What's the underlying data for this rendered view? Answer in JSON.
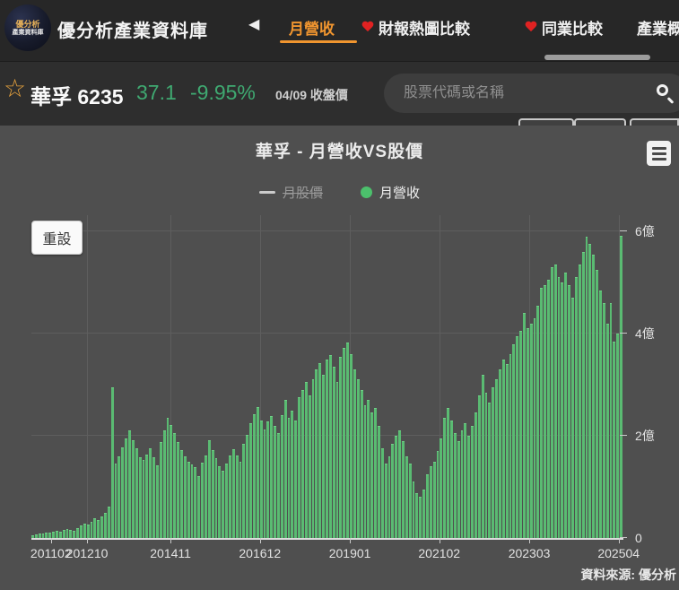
{
  "header": {
    "logo_line1": "優分析",
    "logo_line2": "產業資料庫",
    "brand": "優分析產業資料庫",
    "back_icon": "◀",
    "nav": [
      {
        "label": "月營收",
        "active": true,
        "heart": false
      },
      {
        "label": "財報熱圖比較",
        "active": false,
        "heart": true
      },
      {
        "label": "同業比較",
        "active": false,
        "heart": true
      },
      {
        "label": "產業概",
        "active": false,
        "heart": false
      }
    ]
  },
  "stockbar": {
    "star_icon": "☆",
    "stock_name": "華孚 6235",
    "price": "37.1",
    "change_pct": "-9.95%",
    "price_note": "04/09 收盤價",
    "search_placeholder": "股票代碼或名稱"
  },
  "chart": {
    "title": "華孚 - 月營收VS股價",
    "reset_label": "重設",
    "credits": "資料來源: 優分析",
    "legend": [
      {
        "label": "月股價",
        "type": "line",
        "disabled": true
      },
      {
        "label": "月營收",
        "type": "bar",
        "disabled": false,
        "color": "#5abb72"
      }
    ]
  },
  "colors": {
    "accent_orange": "#f0952f",
    "price_green": "#3fa971",
    "bar_green": "#5abb72",
    "topbar_bg": "#272727",
    "panel_bg": "#4f4f4f"
  },
  "chart_data": {
    "type": "bar",
    "title": "華孚 - 月營收VS股價",
    "series_name": "月營收",
    "disabled_series": "月股價",
    "unit": "億",
    "start_month": "201102",
    "end_month": "202504",
    "ylim": [
      0,
      6.32
    ],
    "grid": true,
    "legend_position": "top-center",
    "x_tick_labels": [
      "201102",
      "201210",
      "201411",
      "201612",
      "201901",
      "202102",
      "202303",
      "202504"
    ],
    "y_ticks": [
      {
        "value": 6,
        "label": "6億"
      },
      {
        "value": 4,
        "label": "4億"
      },
      {
        "value": 2,
        "label": "2億"
      },
      {
        "value": 0,
        "label": "0"
      }
    ],
    "values": [
      0.06,
      0.07,
      0.08,
      0.08,
      0.1,
      0.11,
      0.12,
      0.14,
      0.13,
      0.16,
      0.18,
      0.16,
      0.14,
      0.2,
      0.24,
      0.28,
      0.26,
      0.32,
      0.38,
      0.35,
      0.42,
      0.5,
      0.62,
      2.95,
      1.45,
      1.6,
      1.78,
      1.95,
      2.1,
      1.92,
      1.76,
      1.58,
      1.52,
      1.64,
      1.76,
      1.58,
      1.42,
      1.88,
      2.1,
      2.36,
      2.22,
      2.05,
      1.88,
      1.72,
      1.6,
      1.5,
      1.44,
      1.38,
      1.22,
      1.48,
      1.62,
      1.92,
      1.72,
      1.56,
      1.4,
      1.32,
      1.46,
      1.62,
      1.74,
      1.62,
      1.5,
      1.84,
      2.02,
      2.24,
      2.42,
      2.56,
      2.3,
      2.12,
      2.28,
      2.39,
      2.2,
      2.05,
      2.4,
      2.71,
      2.35,
      2.5,
      2.3,
      2.75,
      2.9,
      3.05,
      2.8,
      3.1,
      3.3,
      3.42,
      3.2,
      3.5,
      3.58,
      3.35,
      3.05,
      3.55,
      3.73,
      3.82,
      3.6,
      3.3,
      3.1,
      2.9,
      2.6,
      2.7,
      2.45,
      2.55,
      2.2,
      1.75,
      1.45,
      1.6,
      1.85,
      2.0,
      2.1,
      1.9,
      1.6,
      1.45,
      1.1,
      0.88,
      0.8,
      0.95,
      1.25,
      1.4,
      1.5,
      1.7,
      1.95,
      2.35,
      2.55,
      2.3,
      2.05,
      1.9,
      2.1,
      2.25,
      2.0,
      2.2,
      2.45,
      2.8,
      3.2,
      2.85,
      2.65,
      2.95,
      3.1,
      3.3,
      3.5,
      3.4,
      3.6,
      3.8,
      3.95,
      4.05,
      4.4,
      4.1,
      4.2,
      4.3,
      4.55,
      4.9,
      4.95,
      5.05,
      5.3,
      5.35,
      5.1,
      5.0,
      5.2,
      4.95,
      4.7,
      5.1,
      5.35,
      5.6,
      5.9,
      5.75,
      5.55,
      5.25,
      4.85,
      4.6,
      4.2,
      4.6,
      3.85,
      4.0,
      5.92
    ]
  }
}
